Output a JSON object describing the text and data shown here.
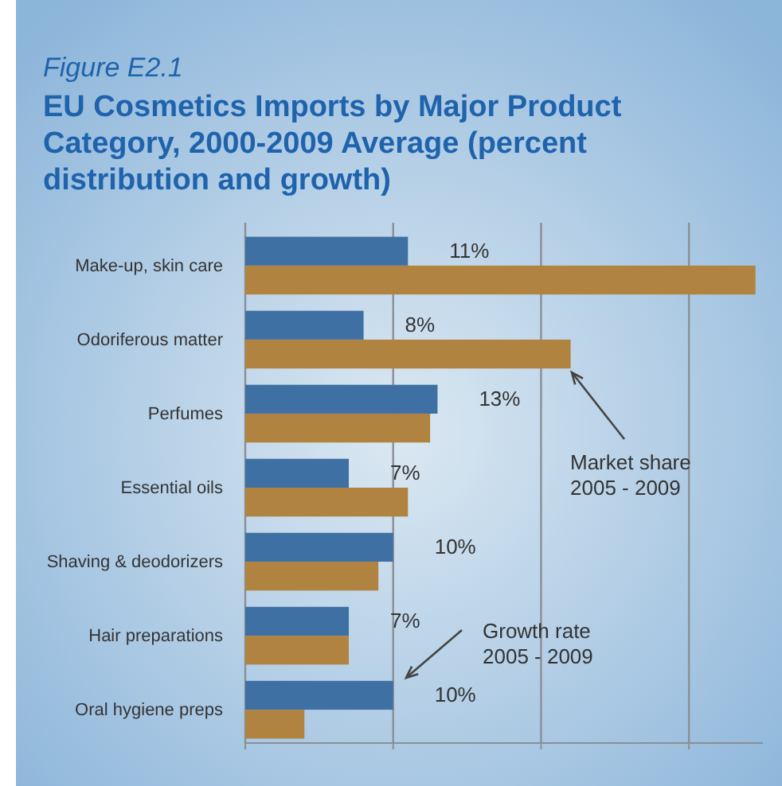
{
  "chart_data": {
    "type": "bar",
    "orientation": "horizontal",
    "legend": false,
    "grid": "x",
    "tick_labels": "y",
    "xlim": [
      0,
      35
    ],
    "xticks": [
      {
        "value": 0,
        "label": null
      },
      {
        "value": 10,
        "label": null
      },
      {
        "value": 20,
        "label": null
      },
      {
        "value": 30,
        "label": null
      }
    ],
    "subtitle": "Figure E2.1",
    "title": "EU Cosmetics Imports by Major Product Category, 2000-2009 Average (percent distribution and growth)",
    "categories": [
      "Make-up, skin care",
      "Odoriferous matter",
      "Perfumes",
      "Essential oils",
      "Shaving & deodorizers",
      "Hair preparations",
      "Oral hygiene preps"
    ],
    "series": [
      {
        "name": "Growth rate 2005 - 2009",
        "color": "#3f70a3",
        "values": [
          11,
          8,
          13,
          7,
          10,
          7,
          10
        ],
        "value_labels": [
          "11%",
          "8%",
          "13%",
          "7%",
          "10%",
          "7%",
          "10%"
        ]
      },
      {
        "name": "Market share 2005 - 2009",
        "color": "#b08440",
        "values": [
          34.5,
          22,
          12.5,
          11,
          9,
          7,
          4
        ]
      }
    ]
  }
}
